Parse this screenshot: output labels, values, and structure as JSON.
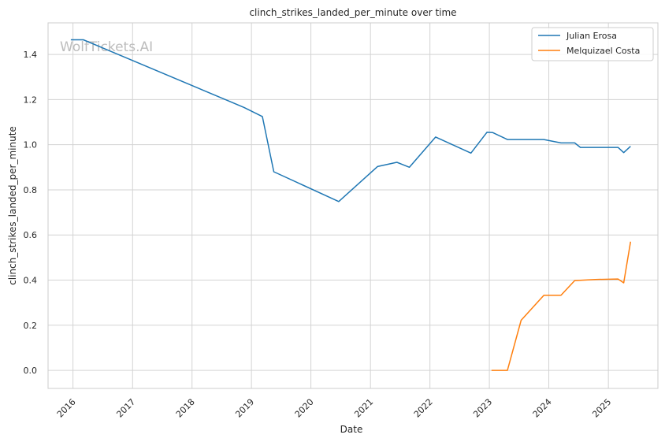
{
  "chart_data": {
    "type": "line",
    "title": "clinch_strikes_landed_per_minute over time",
    "xlabel": "Date",
    "ylabel": "clinch_strikes_landed_per_minute",
    "watermark": "WolfTickets.AI",
    "grid": true,
    "legend_position": "top-right",
    "xlim": [
      "2015-08-01",
      "2025-11-01"
    ],
    "ylim": [
      -0.08,
      1.54
    ],
    "x_ticks": [
      "2016",
      "2017",
      "2018",
      "2019",
      "2020",
      "2021",
      "2022",
      "2023",
      "2024",
      "2025"
    ],
    "y_ticks": [
      "0.0",
      "0.2",
      "0.4",
      "0.6",
      "0.8",
      "1.0",
      "1.2",
      "1.4"
    ],
    "series": [
      {
        "name": "Julian Erosa",
        "color": "#1f77b4",
        "points": [
          {
            "x": "2015-12-19",
            "y": 1.465
          },
          {
            "x": "2016-03-05",
            "y": 1.465
          },
          {
            "x": "2018-11-17",
            "y": 1.165
          },
          {
            "x": "2019-03-09",
            "y": 1.125
          },
          {
            "x": "2019-05-18",
            "y": 0.88
          },
          {
            "x": "2020-06-20",
            "y": 0.748
          },
          {
            "x": "2021-02-13",
            "y": 0.903
          },
          {
            "x": "2021-06-12",
            "y": 0.922
          },
          {
            "x": "2021-08-28",
            "y": 0.9
          },
          {
            "x": "2022-02-05",
            "y": 1.034
          },
          {
            "x": "2022-09-10",
            "y": 0.963
          },
          {
            "x": "2022-12-17",
            "y": 1.055
          },
          {
            "x": "2023-01-21",
            "y": 1.054
          },
          {
            "x": "2023-04-22",
            "y": 1.023
          },
          {
            "x": "2023-12-02",
            "y": 1.023
          },
          {
            "x": "2024-03-16",
            "y": 1.008
          },
          {
            "x": "2024-06-08",
            "y": 1.008
          },
          {
            "x": "2024-07-13",
            "y": 0.988
          },
          {
            "x": "2025-03-01",
            "y": 0.988
          },
          {
            "x": "2025-04-05",
            "y": 0.965
          },
          {
            "x": "2025-05-17",
            "y": 0.993
          }
        ]
      },
      {
        "name": "Melquizael Costa",
        "color": "#ff7f0e",
        "points": [
          {
            "x": "2023-01-14",
            "y": 0.0
          },
          {
            "x": "2023-04-22",
            "y": 0.0
          },
          {
            "x": "2023-07-15",
            "y": 0.222
          },
          {
            "x": "2023-12-02",
            "y": 0.333
          },
          {
            "x": "2024-03-16",
            "y": 0.333
          },
          {
            "x": "2024-06-08",
            "y": 0.398
          },
          {
            "x": "2024-10-12",
            "y": 0.403
          },
          {
            "x": "2025-03-01",
            "y": 0.405
          },
          {
            "x": "2025-04-05",
            "y": 0.388
          },
          {
            "x": "2025-05-17",
            "y": 0.57
          }
        ]
      }
    ]
  }
}
